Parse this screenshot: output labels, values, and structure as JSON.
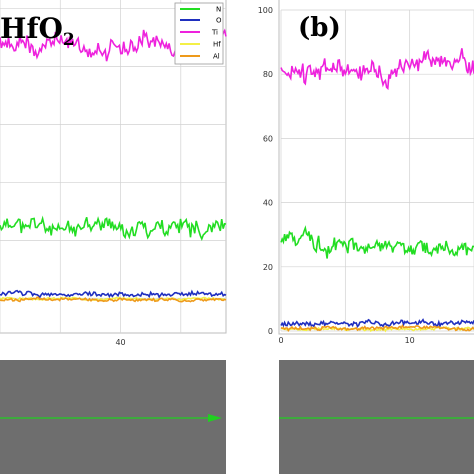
{
  "panels": [
    {
      "label_main": "HfO",
      "label_sub": "2",
      "legend": true
    },
    {
      "label_main": "(b)",
      "label_sub": "",
      "legend": false
    }
  ],
  "colors": {
    "N": "#22dd22",
    "O": "#1f2fbf",
    "Ti": "#ee22dd",
    "Hf": "#f4f046",
    "Al": "#ee9a1a",
    "grid": "#d2d2d2",
    "sem_bg": "#6e6e6e",
    "scan_line": "#20d020"
  },
  "chart_data": [
    {
      "type": "line",
      "title": "HfO2",
      "xlabel": "",
      "ylabel": "",
      "xlim": [
        0,
        75
      ],
      "ylim": [
        -12,
        103
      ],
      "x_ticks": [
        40
      ],
      "y_ticks": [],
      "grid": true,
      "legend_position": "top-right",
      "legend": [
        "N",
        "O",
        "Ti",
        "Hf",
        "Al"
      ],
      "series": [
        {
          "name": "N",
          "color_key": "N",
          "mean": 25,
          "noise": 3,
          "seed": 11
        },
        {
          "name": "O",
          "color_key": "O",
          "mean": 1.5,
          "noise": 0.8,
          "seed": 12
        },
        {
          "name": "Ti",
          "color_key": "Ti",
          "mean": 88,
          "noise": 3.5,
          "seed": 13
        },
        {
          "name": "Hf",
          "color_key": "Hf",
          "mean": -0.2,
          "noise": 0.4,
          "seed": 14
        },
        {
          "name": "Al",
          "color_key": "Al",
          "mean": -0.5,
          "noise": 0.5,
          "seed": 15
        }
      ]
    },
    {
      "type": "line",
      "title": "(b)",
      "xlabel": "",
      "ylabel": "",
      "xlim": [
        0,
        15
      ],
      "ylim": [
        0,
        100
      ],
      "x_ticks": [
        0,
        10
      ],
      "y_ticks": [
        0,
        20,
        40,
        60,
        80,
        100
      ],
      "grid": true,
      "legend_position": "none",
      "series": [
        {
          "name": "N",
          "color_key": "N",
          "mean": 29,
          "noise": 2.5,
          "seed": 21,
          "trend": -0.4
        },
        {
          "name": "O",
          "color_key": "O",
          "mean": 2.5,
          "noise": 0.8,
          "seed": 22
        },
        {
          "name": "Ti",
          "color_key": "Ti",
          "mean": 79,
          "noise": 3.5,
          "seed": 23,
          "trend": 0.6
        },
        {
          "name": "Hf",
          "color_key": "Hf",
          "mean": 0.6,
          "noise": 0.4,
          "seed": 24
        },
        {
          "name": "Al",
          "color_key": "Al",
          "mean": 1.0,
          "noise": 0.5,
          "seed": 25
        }
      ]
    }
  ]
}
